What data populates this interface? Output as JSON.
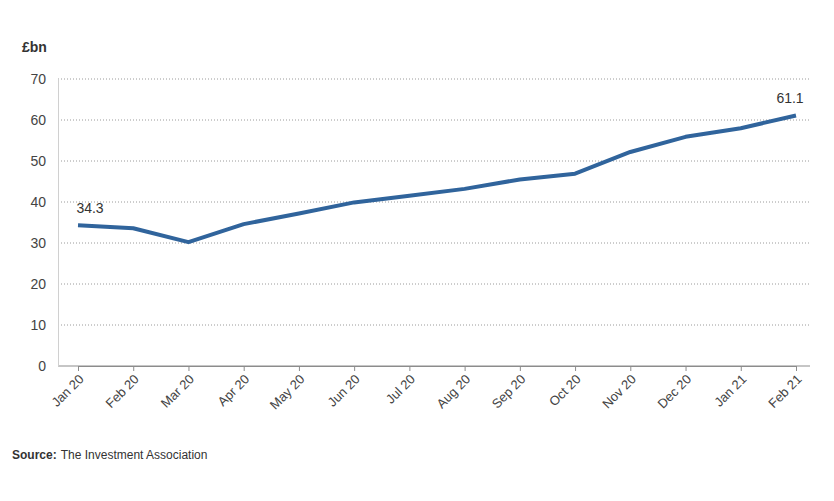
{
  "chart_data": {
    "type": "line",
    "ylabel": "£bn",
    "categories": [
      "Jan 20",
      "Feb 20",
      "Mar 20",
      "Apr 20",
      "May 20",
      "Jun 20",
      "Jul 20",
      "Aug 20",
      "Sep 20",
      "Oct 20",
      "Nov 20",
      "Dec 20",
      "Jan 21",
      "Feb 21"
    ],
    "values": [
      34.3,
      33.6,
      30.2,
      34.6,
      37.2,
      39.9,
      41.5,
      43.2,
      45.5,
      46.9,
      52.2,
      55.9,
      58.0,
      61.1
    ],
    "value_labels": [
      "34.3",
      null,
      null,
      null,
      null,
      null,
      null,
      null,
      null,
      null,
      null,
      null,
      null,
      "61.1"
    ],
    "data_labels": true,
    "color": "#30649c",
    "ylim": [
      0,
      70
    ],
    "yticks": [
      0,
      10,
      20,
      30,
      40,
      50,
      60,
      70
    ],
    "grid": true,
    "source": {
      "label": "Source:",
      "text": "The Investment Association"
    }
  }
}
